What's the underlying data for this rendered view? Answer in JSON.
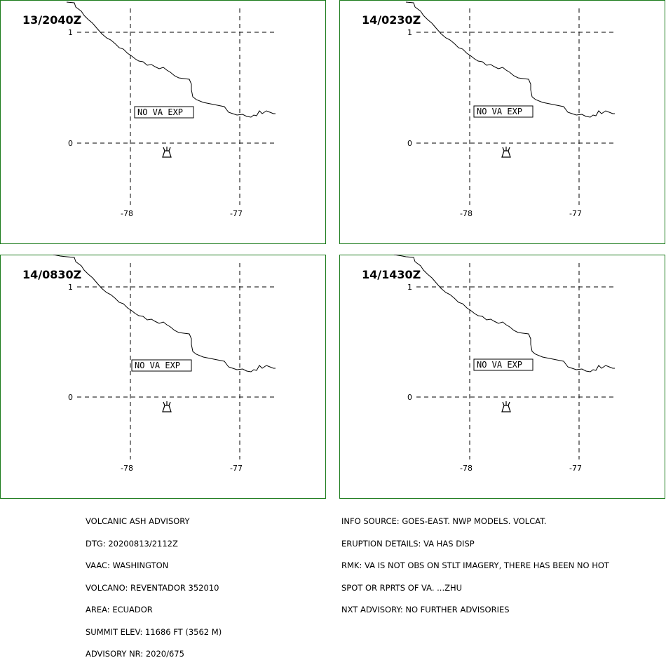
{
  "panels": [
    {
      "time": "13/2040Z",
      "status": "NO VA EXP"
    },
    {
      "time": "14/0230Z",
      "status": "NO VA EXP"
    },
    {
      "time": "14/0830Z",
      "status": "NO VA EXP"
    },
    {
      "time": "14/1430Z",
      "status": "NO VA EXP"
    }
  ],
  "grid": {
    "lat_labels": [
      "1",
      "0"
    ],
    "lon_labels": [
      "-78",
      "-77"
    ]
  },
  "colors": {
    "border": "#1a7a1a",
    "ink": "#000000"
  },
  "advisory": {
    "lines": [
      "VOLCANIC ASH ADVISORY",
      "DTG: 20200813/2112Z",
      "VAAC: WASHINGTON",
      "VOLCANO: REVENTADOR 352010",
      "AREA: ECUADOR",
      "SUMMIT ELEV: 11686 FT (3562 M)",
      "ADVISORY NR: 2020/675"
    ]
  },
  "info": {
    "lines": [
      "INFO SOURCE: GOES-EAST. NWP MODELS. VOLCAT.",
      "ERUPTION DETAILS: VA HAS DISP",
      "RMK: VA IS NOT OBS ON STLT IMAGERY, THERE HAS BEEN NO HOT",
      "SPOT OR RPRTS OF VA. ...ZHU",
      "NXT ADVISORY: NO FURTHER ADVISORIES"
    ]
  }
}
